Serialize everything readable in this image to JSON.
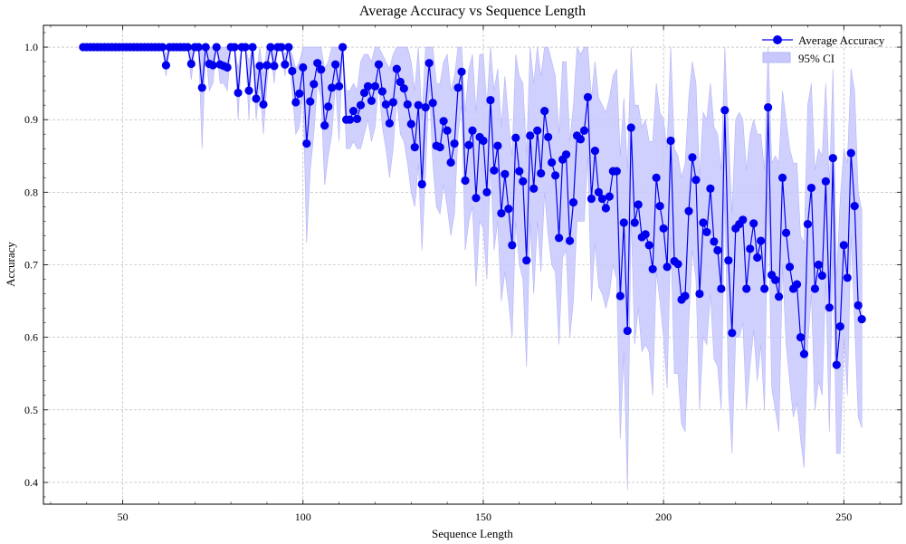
{
  "chart_data": {
    "type": "line",
    "title": "Average Accuracy vs Sequence Length",
    "xlabel": "Sequence Length",
    "ylabel": "Accuracy",
    "xlim": [
      28,
      266
    ],
    "ylim": [
      0.37,
      1.03
    ],
    "xticks": [
      50,
      100,
      150,
      200,
      250
    ],
    "yticks": [
      0.4,
      0.5,
      0.6,
      0.7,
      0.8,
      0.9,
      1.0
    ],
    "xtick_labels": [
      "50",
      "100",
      "150",
      "200",
      "250"
    ],
    "ytick_labels": [
      "0.4",
      "0.5",
      "0.6",
      "0.7",
      "0.8",
      "0.9",
      "1.0"
    ],
    "grid": true,
    "legend_position": "top-right",
    "colors": {
      "line": "#0000ee",
      "ci_fill": "#c8c8ff",
      "ci_edge": "#b4b4f5"
    },
    "series": [
      {
        "name": "Average Accuracy",
        "x": [
          39,
          40,
          41,
          42,
          43,
          44,
          45,
          46,
          47,
          48,
          49,
          50,
          51,
          52,
          53,
          54,
          55,
          56,
          57,
          58,
          59,
          60,
          61,
          62,
          63,
          64,
          65,
          66,
          67,
          68,
          69,
          70,
          71,
          72,
          73,
          74,
          75,
          76,
          77,
          78,
          79,
          80,
          81,
          82,
          83,
          84,
          85,
          86,
          87,
          88,
          89,
          90,
          91,
          92,
          93,
          94,
          95,
          96,
          97,
          98,
          99,
          100,
          101,
          102,
          103,
          104,
          105,
          106,
          107,
          108,
          109,
          110,
          111,
          112,
          113,
          114,
          115,
          116,
          117,
          118,
          119,
          120,
          121,
          122,
          123,
          124,
          125,
          126,
          127,
          128,
          129,
          130,
          131,
          132,
          133,
          134,
          135,
          136,
          137,
          138,
          139,
          140,
          141,
          142,
          143,
          144,
          145,
          146,
          147,
          148,
          149,
          150,
          151,
          152,
          153,
          154,
          155,
          156,
          157,
          158,
          159,
          160,
          161,
          162,
          163,
          164,
          165,
          166,
          167,
          168,
          169,
          170,
          171,
          172,
          173,
          174,
          175,
          176,
          177,
          178,
          179,
          180,
          181,
          182,
          183,
          184,
          185,
          186,
          187,
          188,
          189,
          190,
          191,
          192,
          193,
          194,
          195,
          196,
          197,
          198,
          199,
          200,
          201,
          202,
          203,
          204,
          205,
          206,
          207,
          208,
          209,
          210,
          211,
          212,
          213,
          214,
          215,
          216,
          217,
          218,
          219,
          220,
          221,
          222,
          223,
          224,
          225,
          226,
          227,
          228,
          229,
          230,
          231,
          232,
          233,
          234,
          235,
          236,
          237,
          238,
          239,
          240,
          241,
          242,
          243,
          244,
          245,
          246,
          247,
          248,
          249,
          250,
          251,
          252,
          253,
          254,
          255
        ],
        "y": [
          1.0,
          1.0,
          1.0,
          1.0,
          1.0,
          1.0,
          1.0,
          1.0,
          1.0,
          1.0,
          1.0,
          1.0,
          1.0,
          1.0,
          1.0,
          1.0,
          1.0,
          1.0,
          1.0,
          1.0,
          1.0,
          1.0,
          1.0,
          0.975,
          1.0,
          1.0,
          1.0,
          1.0,
          1.0,
          1.0,
          0.977,
          1.0,
          1.0,
          0.944,
          1.0,
          0.977,
          0.975,
          1.0,
          0.976,
          0.974,
          0.972,
          1.0,
          1.0,
          0.937,
          1.0,
          1.0,
          0.94,
          1.0,
          0.929,
          0.974,
          0.921,
          0.975,
          1.0,
          0.974,
          1.0,
          1.0,
          0.976,
          1.0,
          0.967,
          0.924,
          0.936,
          0.972,
          0.867,
          0.925,
          0.949,
          0.978,
          0.969,
          0.892,
          0.918,
          0.944,
          0.976,
          0.946,
          1.0,
          0.9,
          0.9,
          0.912,
          0.901,
          0.92,
          0.937,
          0.946,
          0.926,
          0.946,
          0.976,
          0.939,
          0.921,
          0.895,
          0.924,
          0.97,
          0.952,
          0.943,
          0.921,
          0.894,
          0.862,
          0.92,
          0.811,
          0.917,
          0.978,
          0.923,
          0.864,
          0.862,
          0.898,
          0.885,
          0.841,
          0.867,
          0.944,
          0.966,
          0.816,
          0.865,
          0.885,
          0.792,
          0.876,
          0.871,
          0.8,
          0.927,
          0.83,
          0.864,
          0.771,
          0.825,
          0.777,
          0.727,
          0.875,
          0.829,
          0.815,
          0.706,
          0.878,
          0.805,
          0.885,
          0.826,
          0.912,
          0.876,
          0.841,
          0.823,
          0.737,
          0.845,
          0.852,
          0.733,
          0.786,
          0.878,
          0.873,
          0.885,
          0.931,
          0.791,
          0.857,
          0.8,
          0.791,
          0.778,
          0.794,
          0.829,
          0.829,
          0.657,
          0.758,
          0.609,
          0.889,
          0.758,
          0.783,
          0.738,
          0.742,
          0.727,
          0.694,
          0.82,
          0.781,
          0.75,
          0.697,
          0.871,
          0.705,
          0.701,
          0.652,
          0.657,
          0.774,
          0.848,
          0.817,
          0.66,
          0.758,
          0.745,
          0.805,
          0.732,
          0.72,
          0.667,
          0.913,
          0.706,
          0.606,
          0.75,
          0.756,
          0.762,
          0.667,
          0.722,
          0.757,
          0.71,
          0.733,
          0.667,
          0.917,
          0.686,
          0.679,
          0.656,
          0.82,
          0.744,
          0.697,
          0.667,
          0.673,
          0.6,
          0.577,
          0.756,
          0.806,
          0.667,
          0.7,
          0.685,
          0.815,
          0.641,
          0.847,
          0.562,
          0.615,
          0.727,
          0.682,
          0.854,
          0.781,
          0.644,
          0.625
        ]
      },
      {
        "name": "95% CI",
        "lower": [
          1.0,
          1.0,
          1.0,
          1.0,
          1.0,
          1.0,
          1.0,
          1.0,
          1.0,
          1.0,
          1.0,
          1.0,
          1.0,
          1.0,
          1.0,
          1.0,
          1.0,
          1.0,
          1.0,
          1.0,
          1.0,
          1.0,
          1.0,
          0.96,
          1.0,
          1.0,
          1.0,
          1.0,
          1.0,
          1.0,
          0.955,
          1.0,
          1.0,
          0.86,
          1.0,
          0.94,
          0.95,
          1.0,
          0.95,
          0.95,
          0.94,
          1.0,
          1.0,
          0.9,
          1.0,
          1.0,
          0.9,
          1.0,
          0.9,
          0.95,
          0.88,
          0.95,
          1.0,
          0.95,
          1.0,
          1.0,
          0.96,
          1.0,
          0.94,
          0.88,
          0.89,
          0.94,
          0.73,
          0.83,
          0.88,
          0.95,
          0.93,
          0.81,
          0.85,
          0.88,
          0.95,
          0.87,
          1.0,
          0.86,
          0.86,
          0.87,
          0.86,
          0.86,
          0.88,
          0.9,
          0.87,
          0.89,
          0.95,
          0.89,
          0.86,
          0.82,
          0.86,
          0.93,
          0.88,
          0.87,
          0.84,
          0.8,
          0.78,
          0.84,
          0.72,
          0.83,
          0.95,
          0.84,
          0.78,
          0.77,
          0.81,
          0.78,
          0.74,
          0.77,
          0.88,
          0.92,
          0.72,
          0.76,
          0.78,
          0.67,
          0.76,
          0.75,
          0.68,
          0.84,
          0.72,
          0.76,
          0.65,
          0.69,
          0.65,
          0.6,
          0.76,
          0.7,
          0.68,
          0.56,
          0.76,
          0.66,
          0.76,
          0.69,
          0.8,
          0.74,
          0.7,
          0.69,
          0.59,
          0.71,
          0.72,
          0.6,
          0.65,
          0.76,
          0.76,
          0.76,
          0.85,
          0.65,
          0.73,
          0.67,
          0.66,
          0.64,
          0.66,
          0.7,
          0.68,
          0.46,
          0.58,
          0.39,
          0.77,
          0.59,
          0.64,
          0.58,
          0.59,
          0.58,
          0.52,
          0.69,
          0.65,
          0.6,
          0.53,
          0.74,
          0.55,
          0.55,
          0.48,
          0.47,
          0.62,
          0.72,
          0.68,
          0.5,
          0.6,
          0.59,
          0.66,
          0.57,
          0.56,
          0.5,
          0.8,
          0.53,
          0.44,
          0.6,
          0.6,
          0.62,
          0.5,
          0.56,
          0.61,
          0.54,
          0.59,
          0.5,
          0.8,
          0.53,
          0.5,
          0.47,
          0.7,
          0.59,
          0.54,
          0.49,
          0.51,
          0.46,
          0.42,
          0.59,
          0.66,
          0.5,
          0.54,
          0.52,
          0.68,
          0.47,
          0.72,
          0.44,
          0.44,
          0.6,
          0.52,
          0.74,
          0.62,
          0.49,
          0.475
        ],
        "upper": [
          1.0,
          1.0,
          1.0,
          1.0,
          1.0,
          1.0,
          1.0,
          1.0,
          1.0,
          1.0,
          1.0,
          1.0,
          1.0,
          1.0,
          1.0,
          1.0,
          1.0,
          1.0,
          1.0,
          1.0,
          1.0,
          1.0,
          1.0,
          0.99,
          1.0,
          1.0,
          1.0,
          1.0,
          1.0,
          1.0,
          0.995,
          1.0,
          1.0,
          1.0,
          1.0,
          1.0,
          1.0,
          1.0,
          1.0,
          1.0,
          1.0,
          1.0,
          1.0,
          0.97,
          1.0,
          1.0,
          0.98,
          1.0,
          0.96,
          1.0,
          0.96,
          1.0,
          1.0,
          1.0,
          1.0,
          1.0,
          0.99,
          1.0,
          0.99,
          0.97,
          0.98,
          1.0,
          1.0,
          1.0,
          1.0,
          1.0,
          1.0,
          0.97,
          0.98,
          1.0,
          1.0,
          1.0,
          1.0,
          0.94,
          0.94,
          0.95,
          0.94,
          0.98,
          0.99,
          0.99,
          0.98,
          1.0,
          1.0,
          0.99,
          0.98,
          0.97,
          0.99,
          1.0,
          1.0,
          1.0,
          1.0,
          0.98,
          0.94,
          1.0,
          0.9,
          1.0,
          1.0,
          1.0,
          0.95,
          0.95,
          0.98,
          0.99,
          0.94,
          0.96,
          1.0,
          1.0,
          0.91,
          0.97,
          0.99,
          0.91,
          0.99,
          0.99,
          0.92,
          1.0,
          0.94,
          0.97,
          0.89,
          0.96,
          0.9,
          0.85,
          0.99,
          0.96,
          0.95,
          0.85,
          1.0,
          0.95,
          1.0,
          0.96,
          1.0,
          1.0,
          0.98,
          0.96,
          0.88,
          0.98,
          0.98,
          0.87,
          0.92,
          1.0,
          0.99,
          1.0,
          1.0,
          0.93,
          0.98,
          0.93,
          0.92,
          0.91,
          0.93,
          0.96,
          0.97,
          0.85,
          0.93,
          0.83,
          1.0,
          0.92,
          0.92,
          0.89,
          0.9,
          0.87,
          0.87,
          0.95,
          0.91,
          0.9,
          0.86,
          1.0,
          0.86,
          0.85,
          0.82,
          0.84,
          0.93,
          0.98,
          0.95,
          0.82,
          0.91,
          0.9,
          0.95,
          0.89,
          0.88,
          0.83,
          1.0,
          0.88,
          0.77,
          0.9,
          0.91,
          0.9,
          0.83,
          0.88,
          0.9,
          0.88,
          0.88,
          0.83,
          1.0,
          0.84,
          0.85,
          0.84,
          0.94,
          0.9,
          0.86,
          0.84,
          0.84,
          0.74,
          0.73,
          0.92,
          0.95,
          0.83,
          0.86,
          0.85,
          0.95,
          0.81,
          0.97,
          0.68,
          0.79,
          0.86,
          0.84,
          0.97,
          0.94,
          0.8,
          0.775
        ]
      }
    ]
  }
}
